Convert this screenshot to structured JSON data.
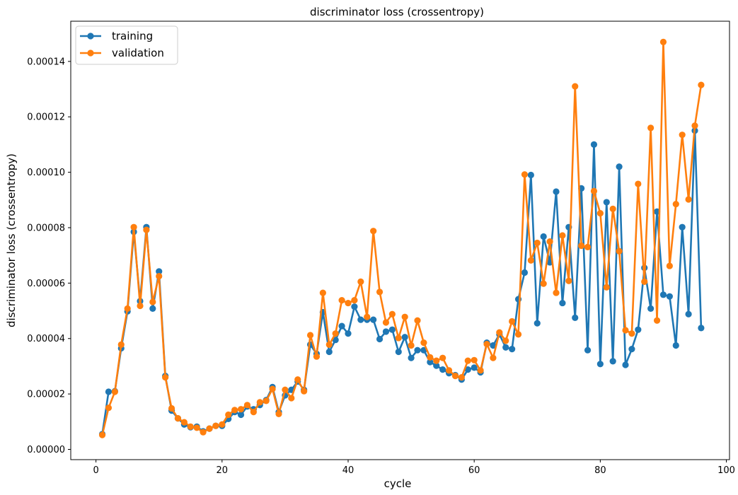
{
  "chart_data": {
    "type": "line",
    "title": "discriminator loss (crossentropy)",
    "xlabel": "cycle",
    "ylabel": "discriminator loss (crossentropy)",
    "xlim": [
      -4,
      100.5
    ],
    "ylim": [
      -3.7e-06,
      0.0001545
    ],
    "x_ticks": [
      0,
      20,
      40,
      60,
      80,
      100
    ],
    "x_tick_labels": [
      "0",
      "20",
      "40",
      "60",
      "80",
      "100"
    ],
    "y_ticks": [
      0,
      2e-05,
      4e-05,
      6e-05,
      8e-05,
      0.0001,
      0.00012,
      0.00014
    ],
    "y_tick_labels": [
      "0.00000",
      "0.00002",
      "0.00004",
      "0.00006",
      "0.00008",
      "0.00010",
      "0.00012",
      "0.00014"
    ],
    "grid": false,
    "legend_position": "top-left",
    "x": [
      1,
      2,
      3,
      4,
      5,
      6,
      7,
      8,
      9,
      10,
      11,
      12,
      13,
      14,
      15,
      16,
      17,
      18,
      19,
      20,
      21,
      22,
      23,
      24,
      25,
      26,
      27,
      28,
      29,
      30,
      31,
      32,
      33,
      34,
      35,
      36,
      37,
      38,
      39,
      40,
      41,
      42,
      43,
      44,
      45,
      46,
      47,
      48,
      49,
      50,
      51,
      52,
      53,
      54,
      55,
      56,
      57,
      58,
      59,
      60,
      61,
      62,
      63,
      64,
      65,
      66,
      67,
      68,
      69,
      70,
      71,
      72,
      73,
      74,
      75,
      76,
      77,
      78,
      79,
      80,
      81,
      82,
      83,
      84,
      85,
      86,
      87,
      88,
      89,
      90,
      91,
      92,
      93,
      94,
      95,
      96
    ],
    "series": [
      {
        "name": "training",
        "color": "#1f77b4",
        "values": [
          5.5e-06,
          2.08e-05,
          2.1e-05,
          3.65e-05,
          4.98e-05,
          7.85e-05,
          5.35e-05,
          8.02e-05,
          5.08e-05,
          6.42e-05,
          2.65e-05,
          1.4e-05,
          1.12e-05,
          9e-06,
          8e-06,
          8.2e-06,
          6.5e-06,
          7.5e-06,
          8.5e-06,
          8.5e-06,
          1.1e-05,
          1.35e-05,
          1.25e-05,
          1.55e-05,
          1.45e-05,
          1.6e-05,
          1.78e-05,
          2.25e-05,
          1.35e-05,
          1.95e-05,
          2.15e-05,
          2.45e-05,
          2.15e-05,
          3.78e-05,
          3.45e-05,
          4.95e-05,
          3.52e-05,
          3.95e-05,
          4.45e-05,
          4.18e-05,
          5.15e-05,
          4.68e-05,
          4.68e-05,
          4.68e-05,
          3.98e-05,
          4.25e-05,
          4.32e-05,
          3.52e-05,
          4.05e-05,
          3.3e-05,
          3.58e-05,
          3.58e-05,
          3.15e-05,
          3.02e-05,
          2.88e-05,
          2.75e-05,
          2.68e-05,
          2.52e-05,
          2.88e-05,
          2.95e-05,
          2.78e-05,
          3.85e-05,
          3.75e-05,
          4.15e-05,
          3.68e-05,
          3.62e-05,
          5.42e-05,
          6.38e-05,
          9.9e-05,
          4.55e-05,
          7.68e-05,
          6.75e-05,
          9.3e-05,
          5.28e-05,
          8.02e-05,
          4.75e-05,
          9.42e-05,
          3.58e-05,
          0.00011,
          3.08e-05,
          8.92e-05,
          3.18e-05,
          0.000102,
          3.05e-05,
          3.62e-05,
          4.32e-05,
          6.55e-05,
          5.08e-05,
          8.58e-05,
          5.58e-05,
          5.52e-05,
          3.75e-05,
          8.02e-05,
          4.88e-05,
          0.000115,
          4.38e-05
        ]
      },
      {
        "name": "validation",
        "color": "#ff7f0e",
        "values": [
          5.2e-06,
          1.5e-05,
          2.08e-05,
          3.78e-05,
          5.08e-05,
          8.02e-05,
          5.18e-05,
          7.92e-05,
          5.32e-05,
          6.25e-05,
          2.6e-05,
          1.48e-05,
          1.12e-05,
          9.8e-06,
          8.2e-06,
          7.8e-06,
          6.2e-06,
          7.5e-06,
          8.5e-06,
          9e-06,
          1.25e-05,
          1.42e-05,
          1.45e-05,
          1.6e-05,
          1.35e-05,
          1.7e-05,
          1.75e-05,
          2.18e-05,
          1.28e-05,
          2.15e-05,
          1.85e-05,
          2.52e-05,
          2.1e-05,
          4.12e-05,
          3.35e-05,
          5.65e-05,
          3.78e-05,
          4.18e-05,
          5.38e-05,
          5.28e-05,
          5.38e-05,
          6.05e-05,
          4.78e-05,
          7.88e-05,
          5.68e-05,
          4.58e-05,
          4.88e-05,
          4.02e-05,
          4.78e-05,
          3.75e-05,
          4.65e-05,
          3.85e-05,
          3.32e-05,
          3.2e-05,
          3.3e-05,
          2.85e-05,
          2.65e-05,
          2.6e-05,
          3.2e-05,
          3.22e-05,
          2.85e-05,
          3.8e-05,
          3.3e-05,
          4.22e-05,
          3.92e-05,
          4.62e-05,
          4.15e-05,
          9.92e-05,
          6.82e-05,
          7.45e-05,
          5.98e-05,
          7.5e-05,
          5.65e-05,
          7.72e-05,
          6.08e-05,
          0.000131,
          7.35e-05,
          7.3e-05,
          9.32e-05,
          8.52e-05,
          5.85e-05,
          8.68e-05,
          7.15e-05,
          4.3e-05,
          4.18e-05,
          9.58e-05,
          6.05e-05,
          0.000116,
          4.65e-05,
          0.000147,
          6.62e-05,
          8.85e-05,
          0.0001135,
          9.02e-05,
          0.0001168,
          0.0001315
        ]
      }
    ]
  }
}
